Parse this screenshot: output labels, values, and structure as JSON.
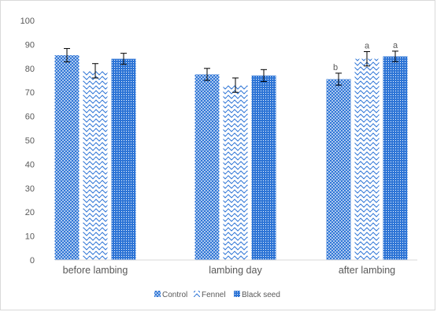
{
  "chart_data": {
    "type": "bar",
    "categories": [
      "before lambing",
      "lambing day",
      "after lambing"
    ],
    "ylim": [
      0,
      100
    ],
    "yticks": [
      0,
      10,
      20,
      30,
      40,
      50,
      60,
      70,
      80,
      90,
      100
    ],
    "series": [
      {
        "name": "Control",
        "pattern": "crosshatch",
        "color": "#2e75d6",
        "values": [
          85.5,
          77.5,
          75.5
        ],
        "errors": [
          2.8,
          2.5,
          2.5
        ]
      },
      {
        "name": "Fennel",
        "pattern": "wave",
        "color": "#2e75d6",
        "values": [
          79,
          73,
          84
        ],
        "errors": [
          3,
          3,
          3
        ]
      },
      {
        "name": "Black seed",
        "pattern": "dots",
        "color": "#2e75d6",
        "values": [
          84,
          77,
          85
        ],
        "errors": [
          2.3,
          2.5,
          2.2
        ]
      }
    ],
    "annotations": [
      {
        "category": 2,
        "series": 0,
        "text": "b"
      },
      {
        "category": 2,
        "series": 1,
        "text": "a"
      },
      {
        "category": 2,
        "series": 2,
        "text": "a"
      }
    ],
    "legend": {
      "position": "bottom"
    },
    "grid": false
  }
}
